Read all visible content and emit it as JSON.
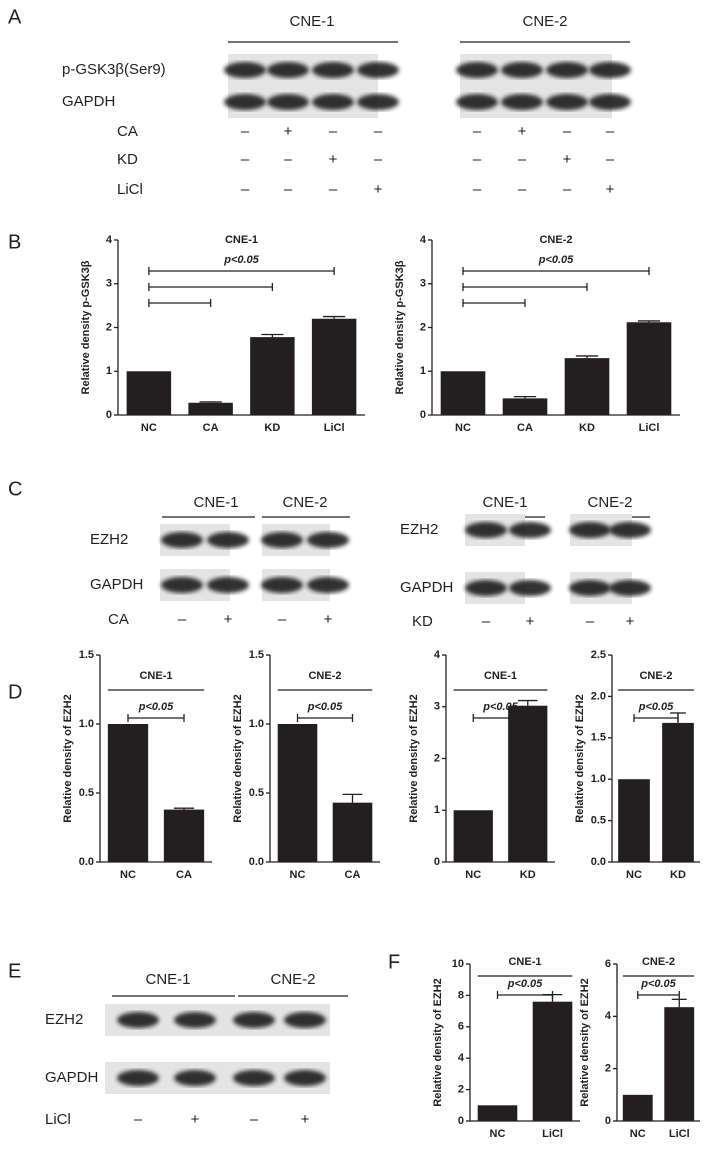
{
  "panel_labels": [
    "A",
    "B",
    "C",
    "D",
    "E",
    "F"
  ],
  "blots": [
    {
      "groups": [
        "CNE-1",
        "CNE-2"
      ],
      "rows": [
        "p-GSK3β(Ser9)",
        "GAPDH"
      ],
      "conditions": [
        {
          "label": "CA",
          "signs": [
            "–",
            "+",
            "–",
            "–",
            "–",
            "+",
            "–",
            "–"
          ]
        },
        {
          "label": "KD",
          "signs": [
            "–",
            "–",
            "+",
            "–",
            "–",
            "–",
            "+",
            "–"
          ]
        },
        {
          "label": "LiCl",
          "signs": [
            "–",
            "–",
            "–",
            "+",
            "–",
            "–",
            "–",
            "+"
          ]
        }
      ]
    },
    {
      "groups": [
        "CNE-1",
        "CNE-2"
      ],
      "rows": [
        "EZH2",
        "GAPDH"
      ],
      "conditions": [
        {
          "label": "CA",
          "signs": [
            "–",
            "+",
            "–",
            "+"
          ]
        }
      ]
    },
    {
      "groups": [
        "CNE-1",
        "CNE-2"
      ],
      "rows": [
        "EZH2",
        "GAPDH"
      ],
      "conditions": [
        {
          "label": "KD",
          "signs": [
            "–",
            "+",
            "–",
            "+"
          ]
        }
      ]
    },
    {
      "groups": [
        "CNE-1",
        "CNE-2"
      ],
      "rows": [
        "EZH2",
        "GAPDH"
      ],
      "conditions": [
        {
          "label": "LiCl",
          "signs": [
            "–",
            "+",
            "–",
            "+"
          ]
        }
      ]
    }
  ],
  "chart_data": [
    {
      "type": "bar",
      "title": "CNE-1",
      "y_label": "Relative density p-GSK3β",
      "annotation": "p<0.05",
      "categories": [
        "NC",
        "CA",
        "KD",
        "LiCl"
      ],
      "values": [
        1,
        0.28,
        1.78,
        2.2
      ],
      "errors": [
        0,
        0.02,
        0.06,
        0.05
      ],
      "ylim": [
        0,
        4
      ],
      "yticks": [
        0,
        1,
        2,
        3,
        4
      ],
      "color": "#231f20"
    },
    {
      "type": "bar",
      "title": "CNE-2",
      "y_label": "Relative density p-GSK3β",
      "annotation": "p<0.05",
      "categories": [
        "NC",
        "CA",
        "KD",
        "LiCl"
      ],
      "values": [
        1,
        0.38,
        1.3,
        2.12
      ],
      "errors": [
        0,
        0.04,
        0.05,
        0.03
      ],
      "ylim": [
        0,
        4
      ],
      "yticks": [
        0,
        1,
        2,
        3,
        4
      ],
      "color": "#231f20"
    },
    {
      "type": "bar",
      "title": "CNE-1",
      "y_label": "Relative density of EZH2",
      "annotation": "p<0.05",
      "categories": [
        "NC",
        "CA"
      ],
      "values": [
        1,
        0.38
      ],
      "errors": [
        0,
        0.01
      ],
      "ylim": [
        0,
        1.5
      ],
      "yticks": [
        {
          "value": 0,
          "label": "0.0"
        },
        {
          "value": 0.5,
          "label": "0.5"
        },
        {
          "value": 1,
          "label": "1.0"
        },
        {
          "value": 1.5,
          "label": "1.5"
        }
      ],
      "color": "#231f20"
    },
    {
      "type": "bar",
      "title": "CNE-2",
      "y_label": "Relative density of EZH2",
      "annotation": "p<0.05",
      "categories": [
        "NC",
        "CA"
      ],
      "values": [
        1,
        0.43
      ],
      "errors": [
        0,
        0.06
      ],
      "ylim": [
        0,
        1.5
      ],
      "yticks": [
        {
          "value": 0,
          "label": "0.0"
        },
        {
          "value": 0.5,
          "label": "0.5"
        },
        {
          "value": 1,
          "label": "1.0"
        },
        {
          "value": 1.5,
          "label": "1.5"
        }
      ],
      "color": "#231f20"
    },
    {
      "type": "bar",
      "title": "CNE-1",
      "y_label": "Relative density of EZH2",
      "annotation": "p<0.05",
      "categories": [
        "NC",
        "KD"
      ],
      "values": [
        1,
        3.02
      ],
      "errors": [
        0,
        0.1
      ],
      "ylim": [
        0,
        4
      ],
      "yticks": [
        0,
        1,
        2,
        3,
        4
      ],
      "color": "#231f20"
    },
    {
      "type": "bar",
      "title": "CNE-2",
      "y_label": "Relative density of EZH2",
      "annotation": "p<0.05",
      "categories": [
        "NC",
        "KD"
      ],
      "values": [
        1,
        1.68
      ],
      "errors": [
        0,
        0.12
      ],
      "ylim": [
        0,
        2.5
      ],
      "yticks": [
        {
          "value": 0,
          "label": "0.0"
        },
        {
          "value": 0.5,
          "label": "0.5"
        },
        {
          "value": 1,
          "label": "1.0"
        },
        {
          "value": 1.5,
          "label": "1.5"
        },
        {
          "value": 2,
          "label": "2.0"
        },
        {
          "value": 2.5,
          "label": "2.5"
        }
      ],
      "color": "#231f20"
    },
    {
      "type": "bar",
      "title": "CNE-1",
      "y_label": "Relative density of EZH2",
      "annotation": "p<0.05",
      "categories": [
        "NC",
        "LiCl"
      ],
      "values": [
        1,
        7.6
      ],
      "errors": [
        0,
        0.45
      ],
      "ylim": [
        0,
        10
      ],
      "yticks": [
        0,
        2,
        4,
        6,
        8,
        10
      ],
      "color": "#231f20"
    },
    {
      "type": "bar",
      "title": "CNE-2",
      "y_label": "Relative density of EZH2",
      "annotation": "p<0.05",
      "categories": [
        "NC",
        "LiCl"
      ],
      "values": [
        1,
        4.35
      ],
      "errors": [
        0,
        0.3
      ],
      "ylim": [
        0,
        6
      ],
      "yticks": [
        0,
        2,
        4,
        6
      ],
      "color": "#231f20"
    }
  ]
}
